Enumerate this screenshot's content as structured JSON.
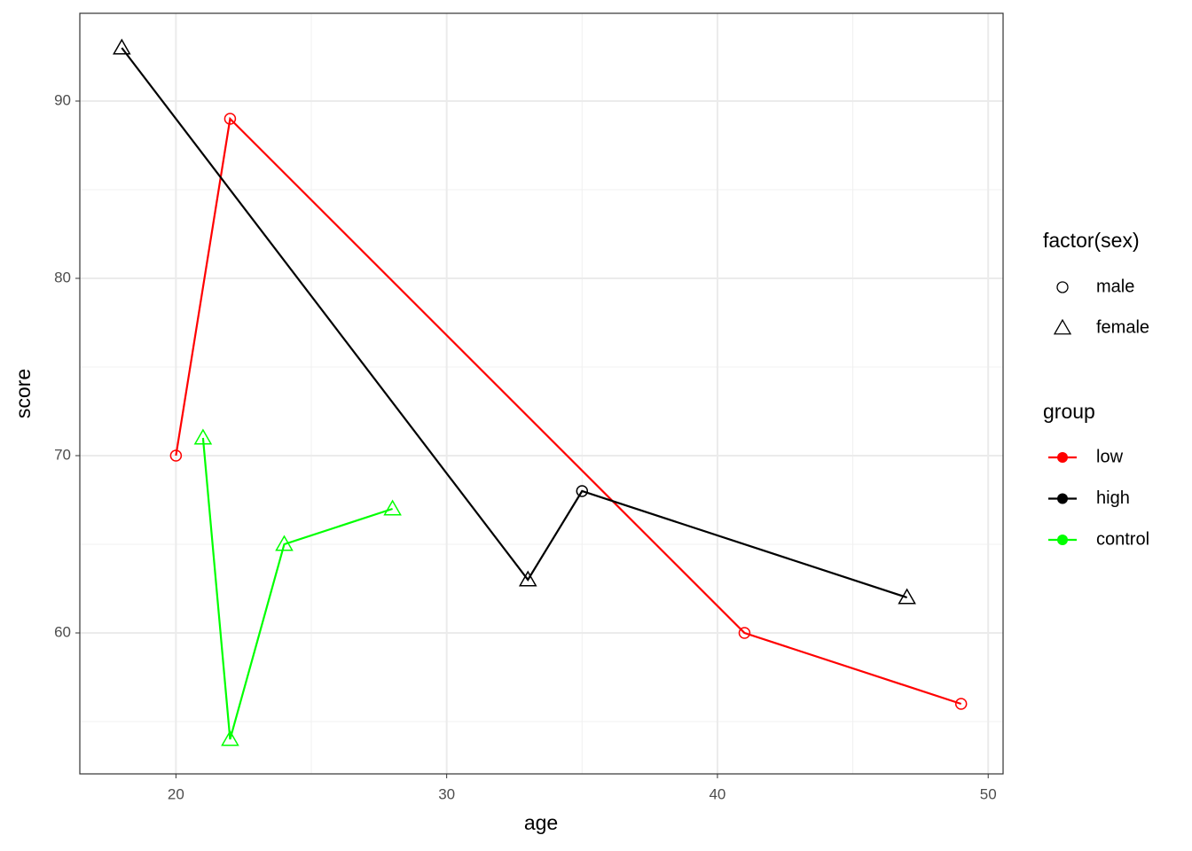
{
  "chart_data": {
    "type": "line",
    "x_label": "age",
    "y_label": "score",
    "xlim": [
      16.45,
      50.55
    ],
    "ylim": [
      52.05,
      94.95
    ],
    "xticks": [
      20,
      30,
      40,
      50
    ],
    "yticks": [
      60,
      70,
      80,
      90
    ],
    "grid": true,
    "minor_grid": true,
    "series": [
      {
        "name": "low",
        "color": "#ff0000",
        "x": [
          20,
          22,
          41,
          49
        ],
        "values": [
          70,
          89,
          60,
          56
        ],
        "sex": [
          "male",
          "male",
          "male",
          "male"
        ]
      },
      {
        "name": "high",
        "color": "#000000",
        "x": [
          18,
          33,
          35,
          47
        ],
        "values": [
          93,
          63,
          68,
          62
        ],
        "sex": [
          "female",
          "female",
          "male",
          "female"
        ]
      },
      {
        "name": "control",
        "color": "#00ff00",
        "x": [
          21,
          22,
          24,
          28
        ],
        "values": [
          71,
          54,
          65,
          67
        ],
        "sex": [
          "female",
          "female",
          "female",
          "female"
        ]
      }
    ],
    "color_legend_title": "group",
    "shape_legend": {
      "title": "factor(sex)",
      "labels": [
        "male",
        "female"
      ],
      "shapes": [
        "circle",
        "triangle"
      ]
    }
  }
}
